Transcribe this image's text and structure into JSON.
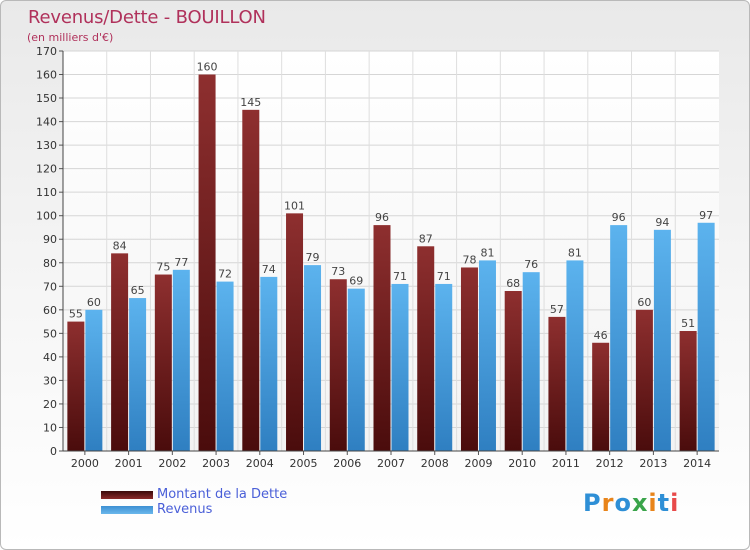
{
  "chart_data": {
    "type": "bar",
    "title": "Revenus/Dette - BOUILLON",
    "subtitle": "(en milliers d'€)",
    "xlabel": "",
    "ylabel": "",
    "ylim": [
      0,
      170
    ],
    "ytick_step": 10,
    "grid": true,
    "legend_position": "bottom-left",
    "categories": [
      "2000",
      "2001",
      "2002",
      "2003",
      "2004",
      "2005",
      "2006",
      "2007",
      "2008",
      "2009",
      "2010",
      "2011",
      "2012",
      "2013",
      "2014"
    ],
    "series": [
      {
        "name": "Montant de la Dette",
        "color": "#7a1f1f",
        "values": [
          55,
          84,
          75,
          160,
          145,
          101,
          73,
          96,
          87,
          78,
          68,
          57,
          46,
          60,
          51
        ]
      },
      {
        "name": "Revenus",
        "color": "#4aa3e6",
        "values": [
          60,
          65,
          77,
          72,
          74,
          79,
          69,
          71,
          71,
          81,
          76,
          81,
          96,
          94,
          97
        ]
      }
    ]
  },
  "logo": {
    "text": "Proxiti",
    "colors": [
      "#2e8fd6",
      "#e8841a",
      "#2e8fd6",
      "#3aa44a",
      "#e8841a",
      "#2e8fd6",
      "#e84a4a"
    ]
  }
}
